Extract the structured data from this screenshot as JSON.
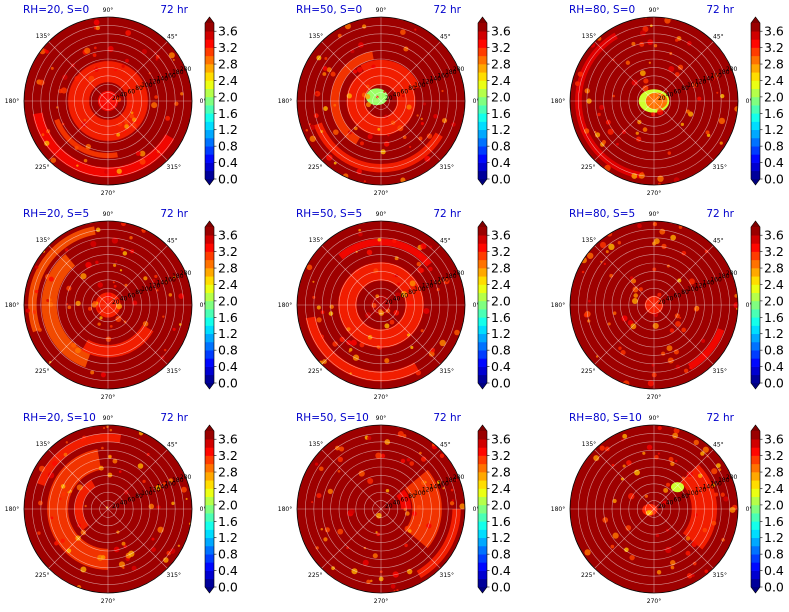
{
  "figure": {
    "panels": [
      {
        "title": "RH=20, S=0",
        "time": "72 hr"
      },
      {
        "title": "RH=50, S=0",
        "time": "72 hr"
      },
      {
        "title": "RH=80, S=0",
        "time": "72 hr"
      },
      {
        "title": "RH=20, S=5",
        "time": "72 hr"
      },
      {
        "title": "RH=50, S=5",
        "time": "72 hr"
      },
      {
        "title": "RH=80, S=5",
        "time": "72 hr"
      },
      {
        "title": "RH=20, S=10",
        "time": "72 hr"
      },
      {
        "title": "RH=50, S=10",
        "time": "72 hr"
      },
      {
        "title": "RH=80, S=10",
        "time": "72 hr"
      }
    ],
    "angle_labels": [
      "0°",
      "45°",
      "90°",
      "135°",
      "180°",
      "225°",
      "270°",
      "315°"
    ],
    "radial_labels": [
      "20",
      "40",
      "60",
      "80",
      "100",
      "120",
      "140",
      "160",
      "180",
      "200"
    ],
    "colorbar": {
      "ticks": [
        "0.0",
        "0.4",
        "0.8",
        "1.2",
        "1.6",
        "2.0",
        "2.4",
        "2.8",
        "3.2",
        "3.6"
      ],
      "levels": [
        0.0,
        0.2,
        0.4,
        0.6,
        0.8,
        1.0,
        1.2,
        1.4,
        1.6,
        1.8,
        2.0,
        2.2,
        2.4,
        2.6,
        2.8,
        3.0,
        3.2,
        3.4,
        3.6,
        3.8
      ],
      "colormap": "jet",
      "extend": "both"
    }
  },
  "chart_data": [
    {
      "type": "heatmap",
      "projection": "polar",
      "title": "RH=20, S=0",
      "annotation": "72 hr",
      "r_ticks": [
        20,
        40,
        60,
        80,
        100,
        120,
        140,
        160,
        180,
        200
      ],
      "theta_ticks_deg": [
        0,
        45,
        90,
        135,
        180,
        225,
        270,
        315
      ],
      "colorbar_range": [
        0.0,
        3.8
      ],
      "dominant_value": 3.8,
      "features": [
        {
          "r_range": [
            0,
            60
          ],
          "value": 3.2,
          "note": "inner ring of lower values"
        },
        {
          "r_range": [
            100,
            200
          ],
          "theta_range": [
            180,
            330
          ],
          "value": 3.3,
          "note": "outer arc"
        }
      ]
    },
    {
      "type": "heatmap",
      "projection": "polar",
      "title": "RH=50, S=0",
      "annotation": "72 hr",
      "r_ticks": [
        20,
        40,
        60,
        80,
        100,
        120,
        140,
        160,
        180,
        200
      ],
      "theta_ticks_deg": [
        0,
        45,
        90,
        135,
        180,
        225,
        270,
        315
      ],
      "colorbar_range": [
        0.0,
        3.8
      ],
      "dominant_value": 3.8,
      "features": [
        {
          "r_range": [
            0,
            70
          ],
          "value": 2.2,
          "note": "eyewall minimum near center"
        },
        {
          "r_range": [
            30,
            120
          ],
          "value": 3.2,
          "note": "spiral bands"
        }
      ]
    },
    {
      "type": "heatmap",
      "projection": "polar",
      "title": "RH=80, S=0",
      "annotation": "72 hr",
      "r_ticks": [
        20,
        40,
        60,
        80,
        100,
        120,
        140,
        160,
        180,
        200
      ],
      "theta_ticks_deg": [
        0,
        45,
        90,
        135,
        180,
        225,
        270,
        315
      ],
      "colorbar_range": [
        0.0,
        3.8
      ],
      "dominant_value": 3.8,
      "features": [
        {
          "r_range": [
            0,
            30
          ],
          "value": 2.0,
          "note": "compact core"
        },
        {
          "r_range": [
            150,
            200
          ],
          "theta_range": [
            100,
            260
          ],
          "value": 3.4,
          "note": "outer arc"
        }
      ]
    },
    {
      "type": "heatmap",
      "projection": "polar",
      "title": "RH=20, S=5",
      "annotation": "72 hr",
      "r_ticks": [
        20,
        40,
        60,
        80,
        100,
        120,
        140,
        160,
        180,
        200
      ],
      "theta_ticks_deg": [
        0,
        45,
        90,
        135,
        180,
        225,
        270,
        315
      ],
      "colorbar_range": [
        0.0,
        3.8
      ],
      "dominant_value": 3.8,
      "features": [
        {
          "r_range": [
            0,
            40
          ],
          "value": 3.2
        },
        {
          "r_range": [
            100,
            200
          ],
          "theta_range": [
            120,
            320
          ],
          "value": 3.0,
          "note": "broad outer bands"
        }
      ]
    },
    {
      "type": "heatmap",
      "projection": "polar",
      "title": "RH=50, S=5",
      "annotation": "72 hr",
      "r_ticks": [
        20,
        40,
        60,
        80,
        100,
        120,
        140,
        160,
        180,
        200
      ],
      "theta_ticks_deg": [
        0,
        45,
        90,
        135,
        180,
        225,
        270,
        315
      ],
      "colorbar_range": [
        0.0,
        3.8
      ],
      "dominant_value": 3.8,
      "features": [
        {
          "r_range": [
            30,
            90
          ],
          "value": 3.2,
          "note": "ring"
        },
        {
          "r_range": [
            150,
            200
          ],
          "theta_range": [
            180,
            300
          ],
          "value": 3.2
        }
      ]
    },
    {
      "type": "heatmap",
      "projection": "polar",
      "title": "RH=80, S=5",
      "annotation": "72 hr",
      "r_ticks": [
        20,
        40,
        60,
        80,
        100,
        120,
        140,
        160,
        180,
        200
      ],
      "theta_ticks_deg": [
        0,
        45,
        90,
        135,
        180,
        225,
        270,
        315
      ],
      "colorbar_range": [
        0.0,
        3.8
      ],
      "dominant_value": 3.8,
      "features": [
        {
          "r_range": [
            0,
            25
          ],
          "value": 3.2,
          "note": "small core"
        }
      ]
    },
    {
      "type": "heatmap",
      "projection": "polar",
      "title": "RH=20, S=10",
      "annotation": "72 hr",
      "r_ticks": [
        20,
        40,
        60,
        80,
        100,
        120,
        140,
        160,
        180,
        200
      ],
      "theta_ticks_deg": [
        0,
        45,
        90,
        135,
        180,
        225,
        270,
        315
      ],
      "colorbar_range": [
        0.0,
        3.8
      ],
      "dominant_value": 3.8,
      "features": [
        {
          "r_range": [
            60,
            200
          ],
          "theta_range": [
            90,
            300
          ],
          "value": 3.2,
          "note": "western bands"
        }
      ]
    },
    {
      "type": "heatmap",
      "projection": "polar",
      "title": "RH=50, S=10",
      "annotation": "72 hr",
      "r_ticks": [
        20,
        40,
        60,
        80,
        100,
        120,
        140,
        160,
        180,
        200
      ],
      "theta_ticks_deg": [
        0,
        45,
        90,
        135,
        180,
        225,
        270,
        315
      ],
      "colorbar_range": [
        0.0,
        3.8
      ],
      "dominant_value": 3.8,
      "features": [
        {
          "r_range": [
            20,
            200
          ],
          "theta_range": [
            -60,
            60
          ],
          "value": 3.0,
          "note": "eastern band"
        }
      ]
    },
    {
      "type": "heatmap",
      "projection": "polar",
      "title": "RH=80, S=10",
      "annotation": "72 hr",
      "r_ticks": [
        20,
        40,
        60,
        80,
        100,
        120,
        140,
        160,
        180,
        200
      ],
      "theta_ticks_deg": [
        0,
        45,
        90,
        135,
        180,
        225,
        270,
        315
      ],
      "colorbar_range": [
        0.0,
        3.8
      ],
      "dominant_value": 3.8,
      "features": [
        {
          "r_range": [
            20,
            200
          ],
          "theta_range": [
            -60,
            60
          ],
          "value": 3.0,
          "note": "eastern band"
        },
        {
          "r_range": [
            80,
            110
          ],
          "theta_range": [
            30,
            45
          ],
          "value": 2.2,
          "note": "green spot"
        }
      ]
    }
  ]
}
